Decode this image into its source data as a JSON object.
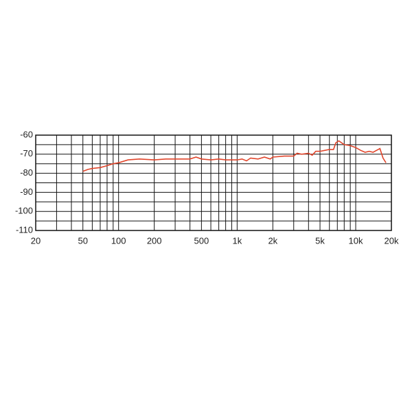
{
  "chart_data": {
    "type": "line",
    "log_x": true,
    "grid": true,
    "xlim": [
      20,
      20000
    ],
    "ylim": [
      -110,
      -60
    ],
    "xticks": [
      20,
      50,
      100,
      200,
      500,
      {
        "value": 1000,
        "label": "1k"
      },
      {
        "value": 2000,
        "label": "2k"
      },
      {
        "value": 5000,
        "label": "5k"
      },
      {
        "value": 10000,
        "label": "10k"
      },
      {
        "value": 20000,
        "label": "20k"
      }
    ],
    "yticks": [
      -60,
      -70,
      -80,
      -90,
      -100,
      -110
    ],
    "x_minor_grid": [
      30,
      40,
      60,
      70,
      80,
      90,
      300,
      400,
      600,
      700,
      800,
      900,
      3000,
      4000,
      6000,
      7000,
      8000,
      9000
    ],
    "y_minor_grid": [
      -65,
      -75,
      -85,
      -95,
      -105
    ],
    "series": [
      {
        "color": "#e0452b",
        "x": [
          50,
          55,
          60,
          70,
          80,
          90,
          100,
          120,
          150,
          200,
          250,
          300,
          400,
          450,
          500,
          600,
          700,
          800,
          1000,
          1100,
          1200,
          1300,
          1500,
          1700,
          1900,
          2000,
          2500,
          3000,
          3200,
          3500,
          4000,
          4300,
          4600,
          5000,
          5500,
          6000,
          6500,
          6800,
          7200,
          8000,
          9000,
          10000,
          11000,
          12000,
          13000,
          14000,
          15000,
          16000,
          17000,
          18000
        ],
        "values": [
          -79,
          -78,
          -77.5,
          -77,
          -76,
          -75,
          -74.5,
          -73,
          -72.5,
          -73,
          -72.5,
          -72.5,
          -72.5,
          -71.5,
          -72.5,
          -73,
          -72.5,
          -73,
          -73,
          -72.5,
          -73.5,
          -72,
          -72.5,
          -71.5,
          -72.5,
          -71.5,
          -71,
          -71,
          -69.5,
          -70,
          -69.5,
          -70.5,
          -68.5,
          -68.5,
          -68,
          -67.5,
          -67.5,
          -64,
          -63,
          -65,
          -65.5,
          -66.5,
          -68,
          -69,
          -68.5,
          -69,
          -68,
          -67,
          -72,
          -74.5
        ]
      }
    ]
  }
}
